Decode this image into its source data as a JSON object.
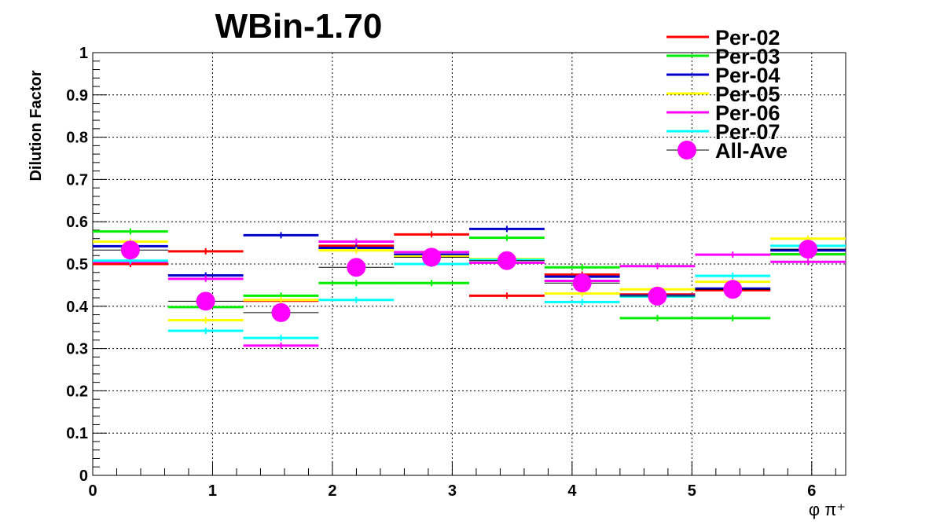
{
  "chart_data": {
    "type": "scatter",
    "title": "WBin-1.70",
    "xlabel": "φ π⁺",
    "ylabel": "Dilution Factor",
    "xlim": [
      0,
      6.2832
    ],
    "ylim": [
      0,
      1
    ],
    "x_ticks": [
      0,
      1,
      2,
      3,
      4,
      5,
      6
    ],
    "y_ticks": [
      0,
      0.1,
      0.2,
      0.3,
      0.4,
      0.5,
      0.6,
      0.7,
      0.8,
      0.9,
      1
    ],
    "y_tick_labels": [
      "0",
      "0.1",
      "0.2",
      "0.3",
      "0.4",
      "0.5",
      "0.6",
      "0.7",
      "0.8",
      "0.9",
      "1"
    ],
    "grid": true,
    "legend_position": "top-right",
    "bin_edges": [
      0,
      0.6283,
      1.2566,
      1.885,
      2.5133,
      3.1416,
      3.7699,
      4.3982,
      5.0265,
      5.6549,
      6.2832
    ],
    "series": [
      {
        "name": "Per-02",
        "color": "#ff0000",
        "style": "step",
        "values": [
          0.5,
          0.53,
          0.413,
          0.543,
          0.57,
          0.425,
          0.475,
          0.428,
          0.438,
          0.523
        ]
      },
      {
        "name": "Per-03",
        "color": "#00ee00",
        "style": "step",
        "values": [
          0.577,
          0.398,
          0.425,
          0.455,
          0.455,
          0.562,
          0.492,
          0.372,
          0.372,
          0.523
        ]
      },
      {
        "name": "Per-04",
        "color": "#0000cc",
        "style": "step",
        "values": [
          0.542,
          0.473,
          0.568,
          0.538,
          0.522,
          0.583,
          0.47,
          0.425,
          0.442,
          0.532
        ]
      },
      {
        "name": "Per-05",
        "color": "#ffff00",
        "style": "step",
        "values": [
          0.553,
          0.367,
          0.415,
          0.532,
          0.518,
          0.512,
          0.43,
          0.44,
          0.458,
          0.56
        ]
      },
      {
        "name": "Per-06",
        "color": "#ff00ff",
        "style": "step",
        "values": [
          0.505,
          0.465,
          0.307,
          0.553,
          0.528,
          0.503,
          0.46,
          0.495,
          0.522,
          0.505
        ]
      },
      {
        "name": "Per-07",
        "color": "#00ffff",
        "style": "step",
        "values": [
          0.508,
          0.342,
          0.325,
          0.415,
          0.5,
          0.51,
          0.41,
          0.423,
          0.472,
          0.543
        ]
      },
      {
        "name": "All-Ave",
        "color": "#ff00ff",
        "style": "marker",
        "bar_color": "#000000",
        "x": [
          0.314,
          0.942,
          1.571,
          2.199,
          2.827,
          3.456,
          4.084,
          4.712,
          5.341,
          5.969
        ],
        "values": [
          0.533,
          0.412,
          0.385,
          0.492,
          0.516,
          0.508,
          0.455,
          0.424,
          0.44,
          0.535
        ]
      }
    ]
  }
}
